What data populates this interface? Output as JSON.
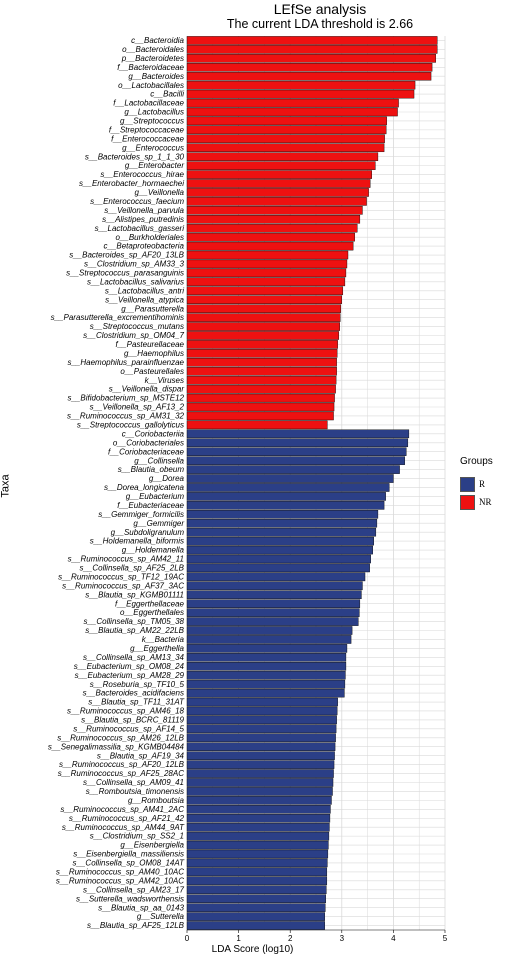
{
  "title": "LEfSe analysis",
  "subtitle": "The current LDA threshold is 2.66",
  "chart_data": {
    "type": "bar",
    "orientation": "horizontal",
    "xlabel": "LDA Score (log10)",
    "ylabel": "Taxa",
    "xlim": [
      0,
      5
    ],
    "x_ticks": [
      0,
      1,
      2,
      3,
      4,
      5
    ],
    "grid": true,
    "legend": {
      "title": "Groups",
      "position": "right",
      "items": [
        {
          "label": "R",
          "color": "#2b3f87"
        },
        {
          "label": "NR",
          "color": "#ee1111"
        }
      ]
    },
    "groups": [
      {
        "name": "NR",
        "color": "#ee1111",
        "bars": [
          {
            "label": "c__Bacteroidia",
            "value": 4.85
          },
          {
            "label": "o__Bacteroidales",
            "value": 4.85
          },
          {
            "label": "p__Bacteroidetes",
            "value": 4.82
          },
          {
            "label": "f__Bacteroidaceae",
            "value": 4.75
          },
          {
            "label": "g__Bacteroides",
            "value": 4.73
          },
          {
            "label": "o__Lactobacillales",
            "value": 4.42
          },
          {
            "label": "c__Bacilli",
            "value": 4.4
          },
          {
            "label": "f__Lactobacillaceae",
            "value": 4.1
          },
          {
            "label": "g__Lactobacillus",
            "value": 4.08
          },
          {
            "label": "g__Streptococcus",
            "value": 3.87
          },
          {
            "label": "f__Streptococcaceae",
            "value": 3.86
          },
          {
            "label": "f__Enterococcaceae",
            "value": 3.83
          },
          {
            "label": "g__Enterococcus",
            "value": 3.82
          },
          {
            "label": "s__Bacteroides_sp_1_1_30",
            "value": 3.7
          },
          {
            "label": "g__Enterobacter",
            "value": 3.65
          },
          {
            "label": "s__Enterococcus_hirae",
            "value": 3.58
          },
          {
            "label": "s__Enterobacter_hormaechei",
            "value": 3.55
          },
          {
            "label": "g__Veillonella",
            "value": 3.52
          },
          {
            "label": "s__Enterococcus_faecium",
            "value": 3.48
          },
          {
            "label": "s__Veillonella_parvula",
            "value": 3.4
          },
          {
            "label": "s__Alistipes_putredinis",
            "value": 3.35
          },
          {
            "label": "s__Lactobacillus_gasseri",
            "value": 3.3
          },
          {
            "label": "o__Burkholderiales",
            "value": 3.25
          },
          {
            "label": "c__Betaproteobacteria",
            "value": 3.22
          },
          {
            "label": "s__Bacteroides_sp_AF20_13LB",
            "value": 3.12
          },
          {
            "label": "s__Clostridium_sp_AM33_3",
            "value": 3.1
          },
          {
            "label": "s__Streptococcus_parasanguinis",
            "value": 3.08
          },
          {
            "label": "s__Lactobacillus_salivarius",
            "value": 3.06
          },
          {
            "label": "s__Lactobacillus_antri",
            "value": 3.02
          },
          {
            "label": "s__Veillonella_atypica",
            "value": 3.0
          },
          {
            "label": "g__Parasutterella",
            "value": 2.98
          },
          {
            "label": "s__Parasutterella_excrementihominis",
            "value": 2.97
          },
          {
            "label": "s__Streptococcus_mutans",
            "value": 2.96
          },
          {
            "label": "s__Clostridium_sp_OM04_7",
            "value": 2.94
          },
          {
            "label": "f__Pasteurellaceae",
            "value": 2.92
          },
          {
            "label": "g__Haemophilus",
            "value": 2.91
          },
          {
            "label": "s__Haemophilus_parainfluenzae",
            "value": 2.9
          },
          {
            "label": "o__Pasteurellales",
            "value": 2.9
          },
          {
            "label": "k__Viruses",
            "value": 2.89
          },
          {
            "label": "s__Veillonella_dispar",
            "value": 2.88
          },
          {
            "label": "s__Bifidobacterium_sp_MSTE12",
            "value": 2.86
          },
          {
            "label": "s__Veillonella_sp_AF13_2",
            "value": 2.85
          },
          {
            "label": "s__Ruminococcus_sp_AM31_32",
            "value": 2.84
          },
          {
            "label": "s__Streptococcus_gallolyticus",
            "value": 2.72
          }
        ]
      },
      {
        "name": "R",
        "color": "#2b3f87",
        "bars": [
          {
            "label": "c__Coriobacteriia",
            "value": 4.3
          },
          {
            "label": "o__Coriobacteriales",
            "value": 4.28
          },
          {
            "label": "f__Coriobacteriaceae",
            "value": 4.25
          },
          {
            "label": "g__Collinsella",
            "value": 4.22
          },
          {
            "label": "s__Blautia_obeum",
            "value": 4.12
          },
          {
            "label": "g__Dorea",
            "value": 4.0
          },
          {
            "label": "s__Dorea_longicatena",
            "value": 3.92
          },
          {
            "label": "g__Eubacterium",
            "value": 3.85
          },
          {
            "label": "f__Eubacteriaceae",
            "value": 3.82
          },
          {
            "label": "s__Gemmiger_formicilis",
            "value": 3.7
          },
          {
            "label": "g__Gemmiger",
            "value": 3.68
          },
          {
            "label": "g__Subdoligranulum",
            "value": 3.66
          },
          {
            "label": "s__Holdemanella_biformis",
            "value": 3.62
          },
          {
            "label": "g__Holdemanella",
            "value": 3.6
          },
          {
            "label": "s__Ruminococcus_sp_AM42_11",
            "value": 3.56
          },
          {
            "label": "s__Collinsella_sp_AF25_2LB",
            "value": 3.54
          },
          {
            "label": "s__Ruminococcus_sp_TF12_19AC",
            "value": 3.45
          },
          {
            "label": "s__Ruminococcus_sp_AF37_3AC",
            "value": 3.4
          },
          {
            "label": "s__Blautia_sp_KGMB01111",
            "value": 3.38
          },
          {
            "label": "f__Eggerthellaceae",
            "value": 3.35
          },
          {
            "label": "o__Eggerthellales",
            "value": 3.34
          },
          {
            "label": "s__Collinsella_sp_TM05_38",
            "value": 3.32
          },
          {
            "label": "s__Blautia_sp_AM22_22LB",
            "value": 3.2
          },
          {
            "label": "k__Bacteria",
            "value": 3.18
          },
          {
            "label": "g__Eggerthella",
            "value": 3.1
          },
          {
            "label": "s__Collinsella_sp_AM13_34",
            "value": 3.08
          },
          {
            "label": "s__Eubacterium_sp_OM08_24",
            "value": 3.08
          },
          {
            "label": "s__Eubacterium_sp_AM28_29",
            "value": 3.07
          },
          {
            "label": "s__Roseburia_sp_TF10_5",
            "value": 3.06
          },
          {
            "label": "s__Bacteroides_acidifaciens",
            "value": 3.05
          },
          {
            "label": "s__Blautia_sp_TF11_31AT",
            "value": 2.92
          },
          {
            "label": "s__Ruminococcus_sp_AM46_18",
            "value": 2.91
          },
          {
            "label": "s__Blautia_sp_BCRC_81119",
            "value": 2.9
          },
          {
            "label": "s__Ruminococcus_sp_AF14_5",
            "value": 2.89
          },
          {
            "label": "s__Ruminococcus_sp_AM26_12LB",
            "value": 2.88
          },
          {
            "label": "s__Senegalimassilia_sp_KGMB04484",
            "value": 2.87
          },
          {
            "label": "s__Blautia_sp_AF19_34",
            "value": 2.86
          },
          {
            "label": "s__Ruminococcus_sp_AF20_12LB",
            "value": 2.85
          },
          {
            "label": "s__Ruminococcus_sp_AF25_28AC",
            "value": 2.84
          },
          {
            "label": "s__Collinsella_sp_AM09_41",
            "value": 2.83
          },
          {
            "label": "s__Romboutsia_timonensis",
            "value": 2.82
          },
          {
            "label": "g__Romboutsia",
            "value": 2.8
          },
          {
            "label": "s__Ruminococcus_sp_AM41_2AC",
            "value": 2.78
          },
          {
            "label": "s__Ruminococcus_sp_AF21_42",
            "value": 2.77
          },
          {
            "label": "s__Ruminococcus_sp_AM44_9AT",
            "value": 2.76
          },
          {
            "label": "s__Clostridium_sp_SS2_1",
            "value": 2.75
          },
          {
            "label": "g__Eisenbergiella",
            "value": 2.74
          },
          {
            "label": "s__Eisenbergiella_massiliensis",
            "value": 2.73
          },
          {
            "label": "s__Collinsella_sp_OM08_14AT",
            "value": 2.72
          },
          {
            "label": "s__Ruminococcus_sp_AM40_10AC",
            "value": 2.71
          },
          {
            "label": "s__Ruminococcus_sp_AM42_10AC",
            "value": 2.71
          },
          {
            "label": "s__Collinsella_sp_AM23_17",
            "value": 2.7
          },
          {
            "label": "s__Sutterella_wadsworthensis",
            "value": 2.69
          },
          {
            "label": "s__Blautia_sp_aa_0143",
            "value": 2.68
          },
          {
            "label": "g__Sutterella",
            "value": 2.67
          },
          {
            "label": "s__Blautia_sp_AF25_12LB",
            "value": 2.67
          }
        ]
      }
    ]
  }
}
